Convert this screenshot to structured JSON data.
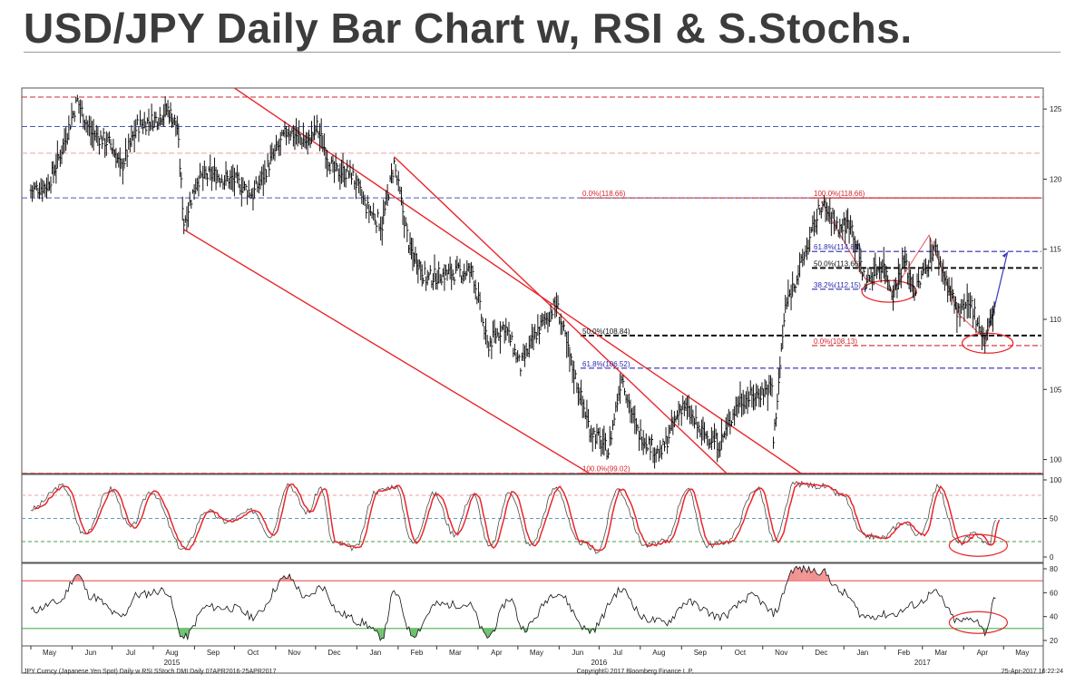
{
  "title": "USD/JPY Daily Bar Chart w, RSI & S.Stochs.",
  "colors": {
    "bars": "#111111",
    "trend_lines": "#e8262c",
    "fib_red": "#d6262c",
    "fib_blue": "#2b2bb0",
    "fib_black": "#111111",
    "stoch_fast": "#4a4a4a",
    "stoch_slow": "#e8262c",
    "rsi_line": "#111111",
    "rsi_over": "#e8262c",
    "rsi_under": "#1a9e1a"
  },
  "chart_data": [
    {
      "type": "bar",
      "subtype": "ohlc",
      "name": "USD/JPY daily",
      "ylim": [
        99,
        126.5
      ],
      "y_ticks": [
        100,
        105,
        110,
        115,
        120,
        125
      ],
      "y_tick_labels": [
        "100",
        "105",
        "110",
        "115",
        "120",
        "125"
      ],
      "x_month_labels": [
        "May",
        "Jun",
        "Jul",
        "Aug",
        "Sep",
        "Oct",
        "Nov",
        "Dec",
        "Jan",
        "Feb",
        "Mar",
        "Apr",
        "May",
        "Jun",
        "Jul",
        "Aug",
        "Sep",
        "Oct",
        "Nov",
        "Dec",
        "Jan",
        "Feb",
        "Mar",
        "Apr",
        "May"
      ],
      "x_year_labels": [
        "2015",
        "2016",
        "2017"
      ],
      "close_path": [
        [
          "2015-05-01",
          119.2
        ],
        [
          "2015-05-14",
          119.6
        ],
        [
          "2015-05-22",
          121.5
        ],
        [
          "2015-06-05",
          125.6
        ],
        [
          "2015-06-15",
          123.3
        ],
        [
          "2015-06-30",
          122.5
        ],
        [
          "2015-07-08",
          120.8
        ],
        [
          "2015-07-20",
          123.8
        ],
        [
          "2015-08-03",
          124.3
        ],
        [
          "2015-08-12",
          125.0
        ],
        [
          "2015-08-19",
          123.7
        ],
        [
          "2015-08-24",
          116.9
        ],
        [
          "2015-09-03",
          120.0
        ],
        [
          "2015-09-15",
          120.3
        ],
        [
          "2015-10-01",
          119.9
        ],
        [
          "2015-10-15",
          118.9
        ],
        [
          "2015-10-26",
          120.9
        ],
        [
          "2015-11-10",
          123.5
        ],
        [
          "2015-11-25",
          122.6
        ],
        [
          "2015-12-02",
          123.7
        ],
        [
          "2015-12-14",
          120.6
        ],
        [
          "2015-12-28",
          120.4
        ],
        [
          "2016-01-08",
          118.0
        ],
        [
          "2016-01-20",
          116.7
        ],
        [
          "2016-01-29",
          121.1
        ],
        [
          "2016-02-10",
          114.9
        ],
        [
          "2016-02-15",
          114.3
        ],
        [
          "2016-02-22",
          112.9
        ],
        [
          "2016-03-10",
          113.3
        ],
        [
          "2016-03-28",
          113.4
        ],
        [
          "2016-04-08",
          108.1
        ],
        [
          "2016-04-21",
          109.6
        ],
        [
          "2016-05-03",
          106.6
        ],
        [
          "2016-05-16",
          109.2
        ],
        [
          "2016-05-30",
          111.1
        ],
        [
          "2016-06-10",
          106.9
        ],
        [
          "2016-06-24",
          102.2
        ],
        [
          "2016-07-08",
          100.6
        ],
        [
          "2016-07-18",
          106.0
        ],
        [
          "2016-07-29",
          102.1
        ],
        [
          "2016-08-16",
          100.3
        ],
        [
          "2016-09-02",
          104.0
        ],
        [
          "2016-09-15",
          102.0
        ],
        [
          "2016-09-30",
          101.1
        ],
        [
          "2016-10-14",
          104.2
        ],
        [
          "2016-10-25",
          104.5
        ],
        [
          "2016-11-08",
          105.2
        ],
        [
          "2016-11-09",
          101.2
        ],
        [
          "2016-11-18",
          110.9
        ],
        [
          "2016-12-01",
          114.2
        ],
        [
          "2016-12-15",
          118.2
        ],
        [
          "2016-12-29",
          116.5
        ],
        [
          "2017-01-06",
          117.0
        ],
        [
          "2017-01-17",
          112.6
        ],
        [
          "2017-01-30",
          114.0
        ],
        [
          "2017-02-07",
          111.8
        ],
        [
          "2017-02-15",
          114.2
        ],
        [
          "2017-02-24",
          112.0
        ],
        [
          "2017-03-10",
          115.2
        ],
        [
          "2017-03-20",
          112.5
        ],
        [
          "2017-03-28",
          110.4
        ],
        [
          "2017-04-07",
          111.0
        ],
        [
          "2017-04-17",
          108.5
        ],
        [
          "2017-04-25",
          111.2
        ]
      ]
    },
    {
      "type": "line",
      "name": "Slow Stochastics",
      "ylim": [
        0,
        100
      ],
      "y_ticks": [
        0,
        50,
        100
      ],
      "y_tick_labels": [
        "0",
        "50",
        "100"
      ],
      "reference_levels": [
        20,
        50,
        80
      ],
      "points": [
        [
          "2015-05-01",
          62
        ],
        [
          "2015-05-25",
          92
        ],
        [
          "2015-06-10",
          30
        ],
        [
          "2015-06-30",
          88
        ],
        [
          "2015-07-15",
          38
        ],
        [
          "2015-07-30",
          85
        ],
        [
          "2015-08-24",
          10
        ],
        [
          "2015-09-10",
          60
        ],
        [
          "2015-09-25",
          46
        ],
        [
          "2015-10-15",
          60
        ],
        [
          "2015-10-28",
          28
        ],
        [
          "2015-11-10",
          95
        ],
        [
          "2015-11-25",
          58
        ],
        [
          "2015-12-05",
          90
        ],
        [
          "2015-12-14",
          18
        ],
        [
          "2015-12-31",
          12
        ],
        [
          "2016-01-15",
          85
        ],
        [
          "2016-01-30",
          92
        ],
        [
          "2016-02-12",
          18
        ],
        [
          "2016-02-28",
          82
        ],
        [
          "2016-03-14",
          30
        ],
        [
          "2016-03-28",
          82
        ],
        [
          "2016-04-10",
          12
        ],
        [
          "2016-04-25",
          85
        ],
        [
          "2016-05-10",
          15
        ],
        [
          "2016-05-30",
          90
        ],
        [
          "2016-06-15",
          20
        ],
        [
          "2016-06-30",
          8
        ],
        [
          "2016-07-15",
          88
        ],
        [
          "2016-08-05",
          15
        ],
        [
          "2016-08-20",
          20
        ],
        [
          "2016-09-05",
          88
        ],
        [
          "2016-09-20",
          15
        ],
        [
          "2016-10-05",
          20
        ],
        [
          "2016-10-28",
          90
        ],
        [
          "2016-11-10",
          20
        ],
        [
          "2016-11-25",
          95
        ],
        [
          "2016-12-15",
          92
        ],
        [
          "2016-12-31",
          80
        ],
        [
          "2017-01-15",
          28
        ],
        [
          "2017-01-30",
          25
        ],
        [
          "2017-02-14",
          45
        ],
        [
          "2017-02-28",
          28
        ],
        [
          "2017-03-12",
          90
        ],
        [
          "2017-03-28",
          18
        ],
        [
          "2017-04-10",
          30
        ],
        [
          "2017-04-20",
          15
        ],
        [
          "2017-04-25",
          48
        ]
      ]
    },
    {
      "type": "line",
      "name": "RSI",
      "ylim": [
        20,
        80
      ],
      "y_ticks": [
        20,
        40,
        60,
        80
      ],
      "y_tick_labels": [
        "20",
        "40",
        "60",
        "80"
      ],
      "reference_levels": [
        30,
        70
      ],
      "points": [
        [
          "2015-05-01",
          45
        ],
        [
          "2015-05-22",
          52
        ],
        [
          "2015-06-05",
          75
        ],
        [
          "2015-06-15",
          57
        ],
        [
          "2015-07-08",
          40
        ],
        [
          "2015-07-20",
          58
        ],
        [
          "2015-08-10",
          62
        ],
        [
          "2015-08-24",
          22
        ],
        [
          "2015-09-10",
          48
        ],
        [
          "2015-10-01",
          47
        ],
        [
          "2015-10-15",
          40
        ],
        [
          "2015-11-10",
          73
        ],
        [
          "2015-11-25",
          55
        ],
        [
          "2015-12-05",
          65
        ],
        [
          "2015-12-20",
          42
        ],
        [
          "2016-01-05",
          35
        ],
        [
          "2016-01-20",
          23
        ],
        [
          "2016-01-29",
          60
        ],
        [
          "2016-02-12",
          25
        ],
        [
          "2016-03-01",
          50
        ],
        [
          "2016-03-25",
          50
        ],
        [
          "2016-04-08",
          23
        ],
        [
          "2016-04-25",
          55
        ],
        [
          "2016-05-05",
          30
        ],
        [
          "2016-05-30",
          60
        ],
        [
          "2016-06-24",
          28
        ],
        [
          "2016-07-18",
          62
        ],
        [
          "2016-08-05",
          38
        ],
        [
          "2016-08-20",
          35
        ],
        [
          "2016-09-05",
          52
        ],
        [
          "2016-09-30",
          40
        ],
        [
          "2016-10-25",
          57
        ],
        [
          "2016-11-09",
          43
        ],
        [
          "2016-11-25",
          80
        ],
        [
          "2016-12-15",
          78
        ],
        [
          "2016-12-31",
          60
        ],
        [
          "2017-01-17",
          40
        ],
        [
          "2017-02-07",
          42
        ],
        [
          "2017-02-24",
          50
        ],
        [
          "2017-03-10",
          60
        ],
        [
          "2017-03-28",
          36
        ],
        [
          "2017-04-10",
          38
        ],
        [
          "2017-04-17",
          27
        ],
        [
          "2017-04-25",
          55
        ]
      ]
    }
  ],
  "fib_levels": [
    {
      "label": "0.0%(118.66)",
      "value": 118.66,
      "color": "red"
    },
    {
      "label": "100.0%(118.66)",
      "value": 118.66,
      "color": "red"
    },
    {
      "label": "61.8%(114.84)",
      "value": 114.84,
      "color": "blue"
    },
    {
      "label": "50.0%(113.66)",
      "value": 113.66,
      "color": "black"
    },
    {
      "label": "38.2%(112.15)",
      "value": 112.15,
      "color": "blue"
    },
    {
      "label": "50.0%(108.84)",
      "value": 108.84,
      "color": "black"
    },
    {
      "label": "0.0%(108.13)",
      "value": 108.13,
      "color": "red"
    },
    {
      "label": "61.8%(106.52)",
      "value": 106.52,
      "color": "blue"
    },
    {
      "label": "100.0%(99.02)",
      "value": 99.02,
      "color": "red"
    }
  ],
  "horizontal_levels": [
    {
      "value": 125.85,
      "style": "red-dashed"
    },
    {
      "value": 123.75,
      "style": "blue-dashed"
    },
    {
      "value": 121.85,
      "style": "pink-dashed"
    },
    {
      "value": 118.66,
      "style": "blue-dashed"
    },
    {
      "value": 99.02,
      "style": "red-dashed"
    }
  ],
  "footer": {
    "left": "JPY Curncy (Japanese Yen Spot) Daily w RSI SStoch DMI  Daily 07APR2016-25APR2017",
    "center": "Copyright© 2017 Bloomberg Finance L.P.",
    "right": "25-Apr-2017 16:22:24"
  }
}
